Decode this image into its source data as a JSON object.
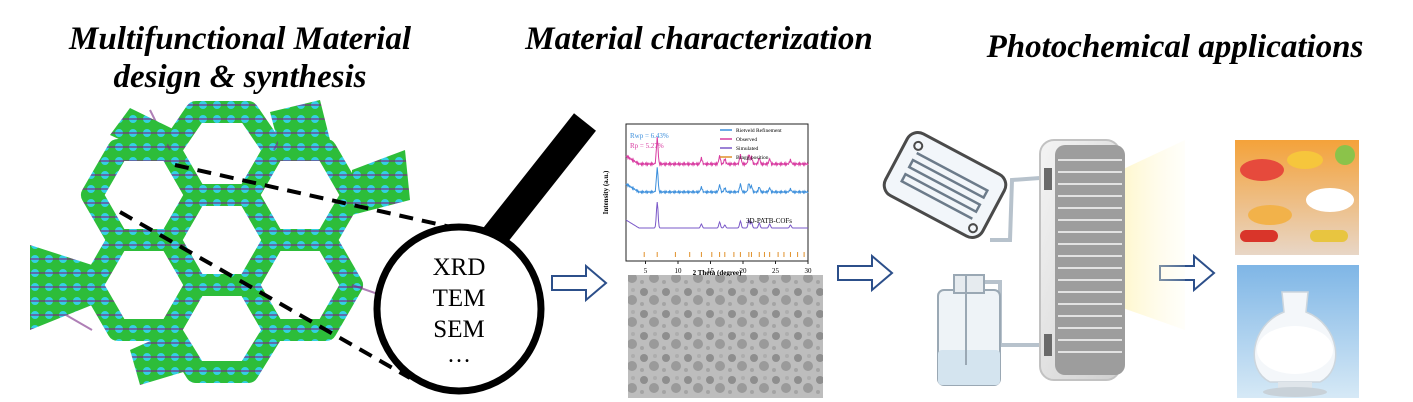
{
  "titles": {
    "design_line1": "Multifunctional Material",
    "design_line2": "design & synthesis",
    "characterization": "Material characterization",
    "applications": "Photochemical applications"
  },
  "lens": {
    "techniques": [
      "XRD",
      "TEM",
      "SEM"
    ],
    "more": "…"
  },
  "icons": {
    "framework": "cof-framework-structure-icon",
    "magnifier": "magnifying-glass-icon",
    "arrow": "outline-right-arrow-icon",
    "tem": "tem-micrograph-image",
    "microreactor": "microfluidic-chip-icon",
    "bottle": "gas-washing-bottle-icon",
    "lamp": "light-panel-icon",
    "pills": "pills-capsules-image",
    "powder": "white-powder-flask-image"
  },
  "chart_data": {
    "type": "line",
    "xlabel": "2 Theta (degree)",
    "ylabel": "Intensity (a.u.)",
    "xlim": [
      2,
      30
    ],
    "xticks": [
      5,
      10,
      15,
      20,
      25,
      30
    ],
    "annotations": [
      "Rwp = 6.43%",
      "Rp = 5.27%"
    ],
    "series_label": "3D-PATB-COFs",
    "legend": [
      {
        "name": "Rietveld Refinement",
        "color": "#3c8fdc"
      },
      {
        "name": "Observed",
        "color": "#d83aa0"
      },
      {
        "name": "Simulated",
        "color": "#7a58c8"
      },
      {
        "name": "Bragg position",
        "color": "#e0902a"
      }
    ],
    "peaks": [
      6.8,
      13.6,
      16.4,
      17.2,
      19.6,
      20.9,
      21.3,
      22.5,
      24.1,
      27.3
    ],
    "bragg_positions": [
      4.8,
      6.8,
      9.6,
      11.8,
      13.6,
      15.2,
      16.4,
      17.2,
      18.6,
      19.6,
      20.9,
      21.3,
      22.5,
      23.3,
      24.1,
      25.4,
      26.3,
      27.3,
      28.4,
      29.4
    ]
  },
  "colors": {
    "framework_green": "#2dbd3a",
    "framework_cyan": "#31d6e6",
    "framework_purple": "#8a2a8a",
    "arrow_stroke": "#2c4f8a",
    "line_observed": "#d83aa0",
    "line_refined": "#3c8fdc",
    "line_simulated": "#7a58c8"
  }
}
